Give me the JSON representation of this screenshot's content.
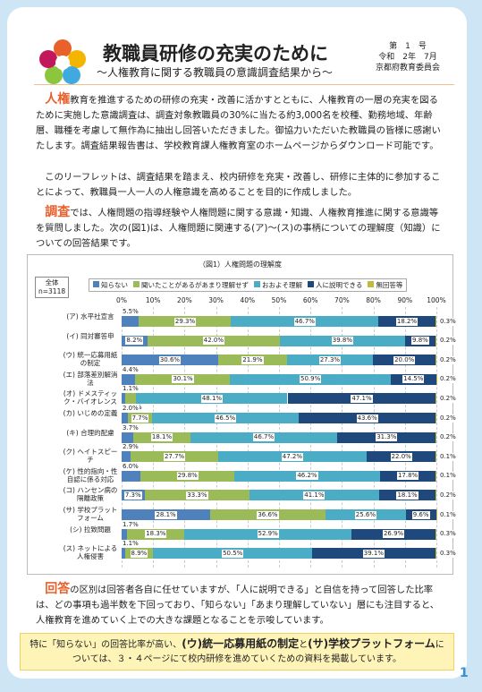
{
  "header": {
    "title": "教職員研修の充実のために",
    "subtitle": "～人権教育に関する教職員の意識調査結果から～",
    "issue": "第　1　号",
    "date": "令和　2年　7月",
    "org": "京都府教育委員会"
  },
  "intro": [
    {
      "lead": "人権",
      "text": "教育を推進するための研修の充実・改善に活かすとともに、人権教育の一層の充実を図るために実施した意識調査は、調査対象教職員の30%に当たる約3,000名を校種、勤務地域、年齢層、職種を考慮して無作為に抽出し回答いただきました。御協力いただいた教職員の皆様に感謝いたします。調査結果報告書は、学校教育課人権教育室のホームページからダウンロード可能です。"
    },
    {
      "text": "このリーフレットは、調査結果を踏まえ、校内研修を充実・改善し、研修に主体的に参加することによって、教職員一人一人の人権意識を高めることを目的に作成しました。"
    },
    {
      "lead": "調査",
      "text": "では、人権問題の指導経験や人権問題に関する意識・知識、人権教育推進に関する意識等を質問しました。次の(図1)は、人権問題に関連する(ア)～(ス)の事柄についての理解度（知識）についての回答結果です。"
    }
  ],
  "chart_data": {
    "type": "stacked-bar-horizontal",
    "title": "（図1）人権問題の理解度",
    "total_label": "全体",
    "n_label": "n=3118",
    "categories": [
      "(ア) 水平社宣言",
      "(イ) 同対審答申",
      "(ウ) 統一応募用紙の制定",
      "(エ) 部落差別解消法",
      "(オ) ドメスティック・バイオレンス",
      "(カ) いじめの定義",
      "(キ) 合理的配慮",
      "(ク) ヘイトスピーチ",
      "(ケ) 性的指向・性自認に係る対応",
      "(コ) ハンセン病の隔離政策",
      "(サ) 学校プラットフォーム",
      "(シ) 拉致問題",
      "(ス) ネットによる人権侵害"
    ],
    "series": [
      {
        "name": "知らない",
        "color": "#4f81bd",
        "values": [
          5.5,
          8.2,
          30.6,
          4.4,
          1.1,
          2.0,
          3.7,
          2.9,
          6.0,
          7.3,
          28.1,
          1.7,
          1.1
        ],
        "value_labels": [
          "5.5%",
          "8.2%",
          "30.6%",
          "4.4%",
          "1.1%",
          "2.0%",
          "3.7%",
          "2.9%",
          "6.0%",
          "7.3%",
          "28.1%",
          "1.7%",
          "1.1%"
        ]
      },
      {
        "name": "聞いたことがあるがあまり理解せず",
        "color": "#9bbb59",
        "values": [
          29.3,
          42.0,
          21.9,
          30.1,
          3.5,
          7.7,
          18.1,
          27.7,
          29.8,
          33.3,
          36.6,
          18.3,
          8.9
        ],
        "value_labels": [
          "29.3%",
          "42.0%",
          "21.9%",
          "30.1%",
          "3.5%",
          "7.7%",
          "18.1%",
          "27.7%",
          "29.8%",
          "33.3%",
          "36.6%",
          "18.3%",
          "8.9%"
        ]
      },
      {
        "name": "おおよそ理解",
        "color": "#4bacc6",
        "values": [
          46.7,
          39.8,
          27.3,
          50.9,
          48.1,
          46.5,
          46.7,
          47.2,
          46.2,
          41.1,
          25.6,
          52.9,
          50.5
        ],
        "value_labels": [
          "46.7%",
          "39.8%",
          "27.3%",
          "50.9%",
          "48.1%",
          "46.5%",
          "46.7%",
          "47.2%",
          "46.2%",
          "41.1%",
          "25.6%",
          "52.9%",
          "50.5%"
        ]
      },
      {
        "name": "人に説明できる",
        "color": "#1f497d",
        "values": [
          18.2,
          9.8,
          20.0,
          14.5,
          47.1,
          43.6,
          31.3,
          22.0,
          17.8,
          18.1,
          9.6,
          26.9,
          39.1
        ],
        "value_labels": [
          "18.2%",
          "9.8%",
          "20.0%",
          "14.5%",
          "47.1%",
          "43.6%",
          "31.3%",
          "22.0%",
          "17.8%",
          "18.1%",
          "9.6%",
          "26.9%",
          "39.1%"
        ]
      },
      {
        "name": "無回答等",
        "color": "#c3b93f",
        "values": [
          0.3,
          0.2,
          0.2,
          0.2,
          0.2,
          0.2,
          0.2,
          0.1,
          0.1,
          0.2,
          0.1,
          0.3,
          0.3
        ],
        "value_labels": [
          "0.3%",
          "0.2%",
          "0.2%",
          "0.2%",
          "0.2%",
          "0.2%",
          "0.2%",
          "0.1%",
          "0.1%",
          "0.2%",
          "0.1%",
          "0.3%",
          "0.3%"
        ]
      }
    ],
    "xlim": [
      0,
      100
    ],
    "xticks": [
      {
        "value": 0,
        "label": "0%"
      },
      {
        "value": 10,
        "label": "10%"
      },
      {
        "value": 20,
        "label": "20%"
      },
      {
        "value": 30,
        "label": "30%"
      },
      {
        "value": 40,
        "label": "40%"
      },
      {
        "value": 50,
        "label": "50%"
      },
      {
        "value": 60,
        "label": "60%"
      },
      {
        "value": 70,
        "label": "70%"
      },
      {
        "value": 80,
        "label": "80%"
      },
      {
        "value": 90,
        "label": "90%"
      },
      {
        "value": 100,
        "label": "100%"
      }
    ],
    "grid": true
  },
  "conclusion": {
    "lead": "回答",
    "text": "の区別は回答者各自に任せていますが、「人に説明できる」と自信を持って回答した比率は、どの事項も過半数を下回っており、「知らない」「あまり理解していない」層にも注目すると、人権教育を進めていく上での大きな課題となることを示唆しています。"
  },
  "note": [
    "特に「知らない」の回答比率が高い、",
    "(ウ)統一応募用紙の制定",
    "と",
    "(サ)学校プラットフォーム",
    "については、３・４ページにて校内研修を進めていくための資料を掲載しています。"
  ],
  "page_number": "1"
}
